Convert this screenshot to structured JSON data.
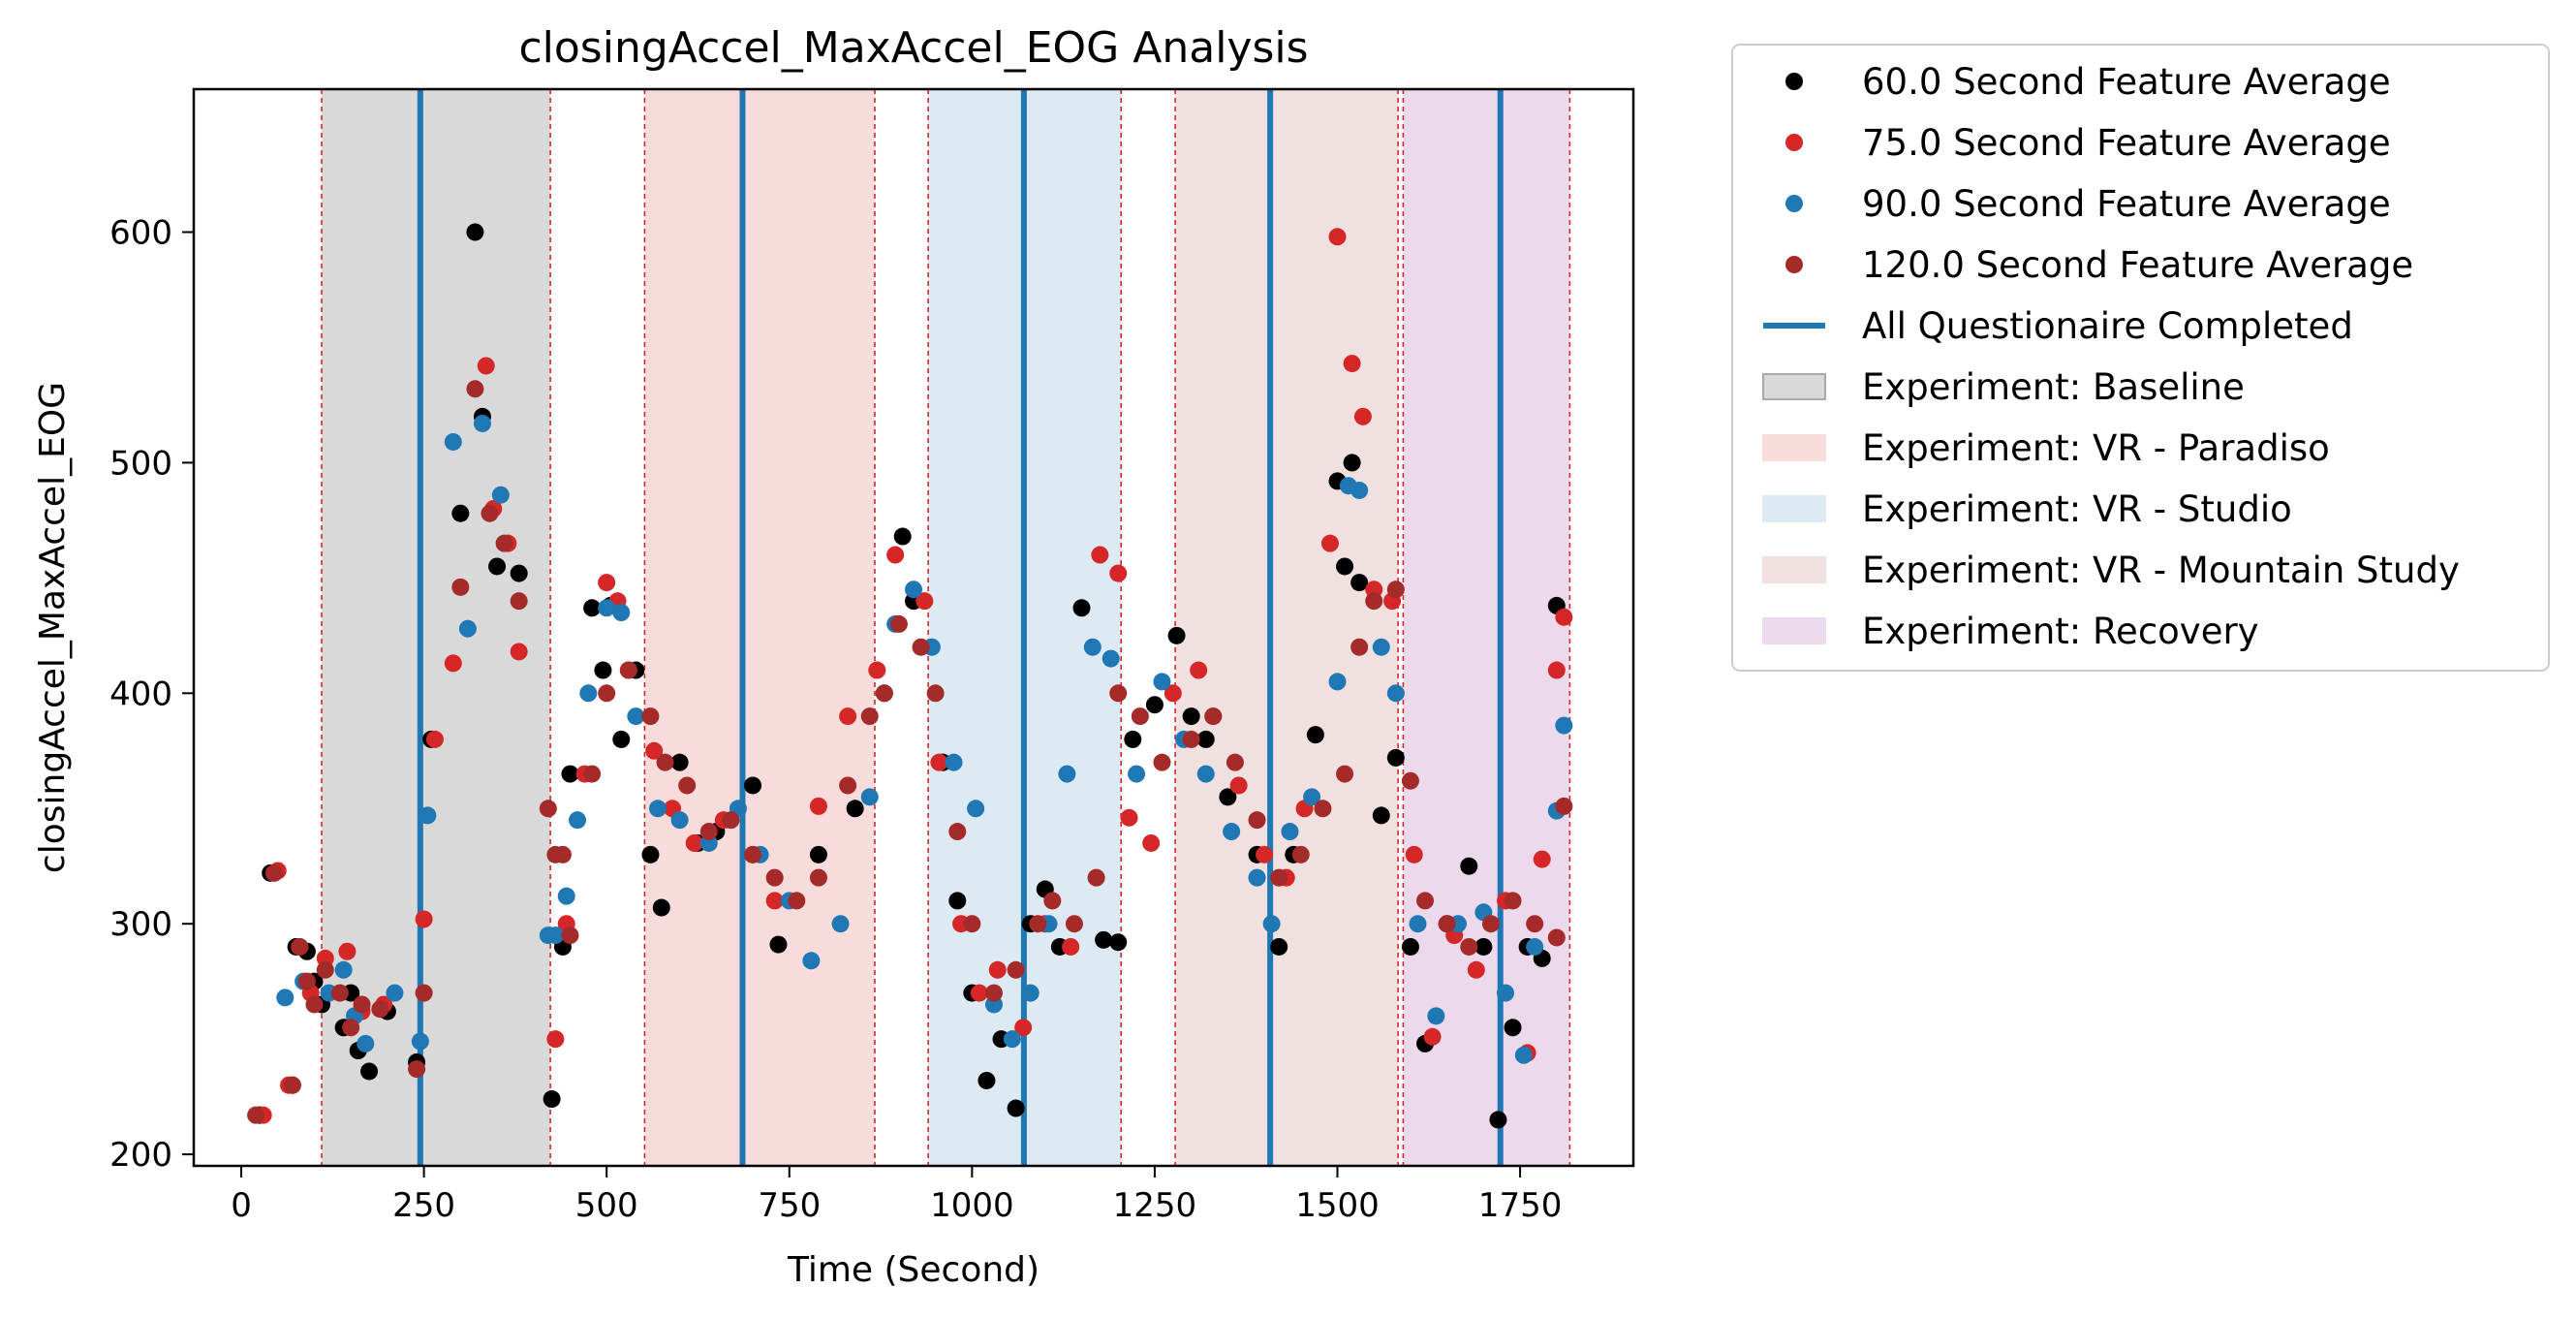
{
  "chart_data": {
    "type": "scatter",
    "title": "closingAccel_MaxAccel_EOG Analysis",
    "xlabel": "Time (Second)",
    "ylabel": "closingAccel_MaxAccel_EOG",
    "xlim": [
      -65,
      1905
    ],
    "ylim": [
      195,
      662
    ],
    "xticks": [
      0,
      250,
      500,
      750,
      1000,
      1250,
      1500,
      1750
    ],
    "yticks": [
      200,
      300,
      400,
      500,
      600
    ],
    "grid": false,
    "legend_position": "outside-right",
    "regions": [
      {
        "name": "Experiment: Baseline",
        "start": 110,
        "end": 423,
        "color": "#d9d9d9"
      },
      {
        "name": "Experiment: VR - Paradiso",
        "start": 552,
        "end": 867,
        "color": "#f8dcdc"
      },
      {
        "name": "Experiment: VR - Studio",
        "start": 940,
        "end": 1204,
        "color": "#dde9f3"
      },
      {
        "name": "Experiment: VR - Mountain Study",
        "start": 1278,
        "end": 1583,
        "color": "#f1e0e0"
      },
      {
        "name": "Experiment: Recovery",
        "start": 1590,
        "end": 1818,
        "color": "#ecdaec"
      }
    ],
    "questionnaire_lines": {
      "name": "All Questionaire Completed",
      "color": "#1f77b4",
      "x": [
        245,
        686,
        1071,
        1408,
        1723
      ]
    },
    "series": [
      {
        "name": "60.0 Second Feature Average",
        "color": "#000000",
        "x": [
          25,
          40,
          70,
          75,
          90,
          100,
          110,
          140,
          150,
          160,
          175,
          200,
          240,
          260,
          300,
          320,
          330,
          350,
          380,
          425,
          440,
          450,
          480,
          495,
          505,
          520,
          540,
          560,
          575,
          600,
          625,
          650,
          700,
          735,
          790,
          840,
          880,
          905,
          920,
          960,
          980,
          1000,
          1020,
          1040,
          1060,
          1080,
          1100,
          1120,
          1150,
          1180,
          1200,
          1220,
          1250,
          1280,
          1300,
          1320,
          1350,
          1390,
          1420,
          1440,
          1470,
          1500,
          1510,
          1520,
          1530,
          1560,
          1580,
          1600,
          1620,
          1650,
          1680,
          1700,
          1720,
          1740,
          1760,
          1780,
          1800
        ],
        "y": [
          217,
          322,
          230,
          290,
          288,
          275,
          265,
          255,
          270,
          245,
          236,
          262,
          240,
          380,
          478,
          600,
          520,
          455,
          452,
          224,
          290,
          365,
          437,
          410,
          438,
          380,
          410,
          330,
          307,
          370,
          335,
          340,
          360,
          291,
          330,
          350,
          400,
          468,
          440,
          370,
          310,
          270,
          232,
          250,
          220,
          300,
          315,
          290,
          437,
          293,
          292,
          380,
          395,
          425,
          390,
          380,
          355,
          330,
          290,
          330,
          382,
          492,
          455,
          500,
          448,
          347,
          372,
          290,
          248,
          300,
          325,
          290,
          215,
          255,
          290,
          285,
          438
        ]
      },
      {
        "name": "75.0 Second Feature Average",
        "color": "#d62728",
        "x": [
          30,
          50,
          65,
          80,
          95,
          115,
          145,
          165,
          195,
          250,
          265,
          290,
          335,
          345,
          365,
          380,
          430,
          445,
          470,
          500,
          515,
          530,
          565,
          590,
          620,
          660,
          700,
          730,
          790,
          830,
          870,
          895,
          935,
          955,
          985,
          1010,
          1035,
          1070,
          1100,
          1135,
          1175,
          1200,
          1215,
          1245,
          1275,
          1310,
          1330,
          1365,
          1400,
          1430,
          1455,
          1490,
          1500,
          1520,
          1535,
          1550,
          1575,
          1605,
          1630,
          1660,
          1690,
          1730,
          1760,
          1780,
          1800,
          1810
        ],
        "y": [
          217,
          323,
          230,
          290,
          270,
          285,
          288,
          262,
          265,
          302,
          380,
          413,
          542,
          480,
          465,
          418,
          250,
          300,
          365,
          448,
          440,
          410,
          375,
          350,
          335,
          345,
          330,
          310,
          351,
          390,
          410,
          460,
          440,
          370,
          300,
          270,
          280,
          255,
          300,
          290,
          460,
          452,
          346,
          335,
          400,
          410,
          390,
          360,
          330,
          320,
          350,
          465,
          598,
          543,
          520,
          445,
          440,
          330,
          251,
          295,
          280,
          310,
          244,
          328,
          410,
          433
        ]
      },
      {
        "name": "90.0 Second Feature Average",
        "color": "#1f77b4",
        "x": [
          60,
          85,
          120,
          140,
          155,
          170,
          210,
          245,
          255,
          290,
          310,
          330,
          355,
          420,
          430,
          445,
          460,
          475,
          500,
          520,
          540,
          570,
          600,
          640,
          680,
          710,
          750,
          780,
          820,
          860,
          895,
          920,
          945,
          975,
          1005,
          1030,
          1055,
          1080,
          1105,
          1130,
          1165,
          1190,
          1225,
          1260,
          1290,
          1320,
          1355,
          1390,
          1410,
          1435,
          1465,
          1500,
          1515,
          1530,
          1560,
          1580,
          1610,
          1635,
          1665,
          1700,
          1730,
          1755,
          1770,
          1800,
          1810
        ],
        "y": [
          268,
          275,
          270,
          280,
          260,
          248,
          270,
          249,
          347,
          509,
          428,
          517,
          486,
          295,
          295,
          312,
          345,
          400,
          437,
          435,
          390,
          350,
          345,
          335,
          350,
          330,
          310,
          284,
          300,
          355,
          430,
          445,
          420,
          370,
          350,
          265,
          250,
          270,
          300,
          365,
          420,
          415,
          365,
          405,
          380,
          365,
          340,
          320,
          300,
          340,
          355,
          405,
          490,
          488,
          420,
          400,
          300,
          260,
          300,
          305,
          270,
          243,
          290,
          349,
          386
        ]
      },
      {
        "name": "120.0 Second Feature Average",
        "color": "#a52a2a",
        "x": [
          20,
          45,
          70,
          80,
          90,
          100,
          115,
          135,
          150,
          165,
          190,
          240,
          250,
          300,
          320,
          340,
          360,
          380,
          420,
          430,
          440,
          450,
          480,
          500,
          530,
          560,
          580,
          610,
          640,
          670,
          700,
          730,
          760,
          790,
          830,
          860,
          880,
          900,
          930,
          950,
          980,
          1000,
          1030,
          1060,
          1090,
          1110,
          1140,
          1170,
          1200,
          1230,
          1260,
          1300,
          1330,
          1360,
          1390,
          1420,
          1450,
          1480,
          1510,
          1530,
          1550,
          1580,
          1600,
          1620,
          1650,
          1680,
          1710,
          1740,
          1770,
          1800,
          1810
        ],
        "y": [
          217,
          322,
          230,
          290,
          275,
          265,
          280,
          270,
          255,
          265,
          263,
          237,
          270,
          446,
          532,
          478,
          465,
          440,
          350,
          330,
          330,
          295,
          365,
          400,
          410,
          390,
          370,
          360,
          340,
          345,
          330,
          320,
          310,
          320,
          360,
          390,
          400,
          430,
          420,
          400,
          340,
          300,
          270,
          280,
          300,
          310,
          300,
          320,
          400,
          390,
          370,
          380,
          390,
          370,
          345,
          320,
          330,
          350,
          365,
          420,
          440,
          445,
          362,
          310,
          300,
          290,
          300,
          310,
          300,
          294,
          351
        ]
      }
    ]
  }
}
